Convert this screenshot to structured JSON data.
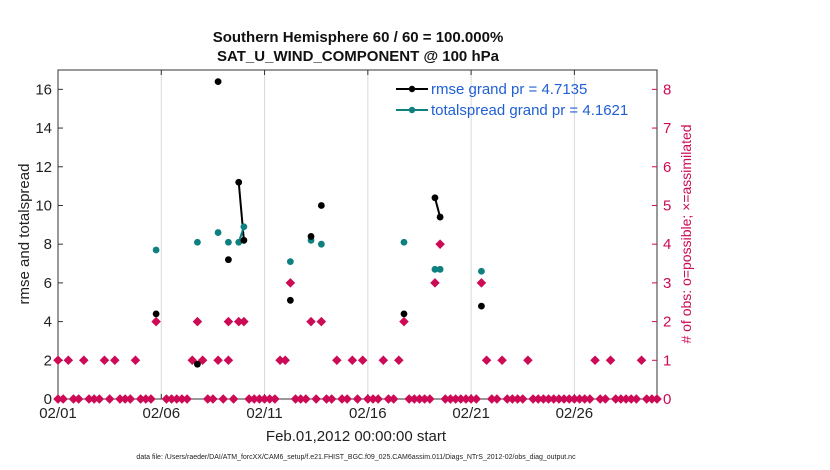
{
  "chart_data": {
    "type": "scatter",
    "title_line1": "Southern Hemisphere 60 / 60 = 100.000%",
    "title_line2": "SAT_U_WIND_COMPONENT @ 100 hPa",
    "xlabel": "Feb.01,2012 00:00:00 start",
    "ylabel_left": "rmse and totalspread",
    "ylabel_right": "# of obs: o=possible; ×=assimilated",
    "footnote": "data file: /Users/raeder/DAI/ATM_forcXX/CAM6_setup/f.e21.FHIST_BGC.f09_025.CAM6assim.011/Diags_NTrS_2012-02/obs_diag_output.nc",
    "xlim": [
      1,
      30
    ],
    "ylim_left": [
      0,
      17
    ],
    "ylim_right": [
      0,
      8.5
    ],
    "x_ticks": [
      {
        "value": 1,
        "label": "02/01"
      },
      {
        "value": 6,
        "label": "02/06"
      },
      {
        "value": 11,
        "label": "02/11"
      },
      {
        "value": 16,
        "label": "02/16"
      },
      {
        "value": 21,
        "label": "02/21"
      },
      {
        "value": 26,
        "label": "02/26"
      }
    ],
    "y_ticks_left": [
      {
        "value": 0,
        "label": "0"
      },
      {
        "value": 2,
        "label": "2"
      },
      {
        "value": 4,
        "label": "4"
      },
      {
        "value": 6,
        "label": "6"
      },
      {
        "value": 8,
        "label": "8"
      },
      {
        "value": 10,
        "label": "10"
      },
      {
        "value": 12,
        "label": "12"
      },
      {
        "value": 14,
        "label": "14"
      },
      {
        "value": 16,
        "label": "16"
      }
    ],
    "y_ticks_right": [
      {
        "value": 0,
        "label": "0"
      },
      {
        "value": 1,
        "label": "1"
      },
      {
        "value": 2,
        "label": "2"
      },
      {
        "value": 3,
        "label": "3"
      },
      {
        "value": 4,
        "label": "4"
      },
      {
        "value": 5,
        "label": "5"
      },
      {
        "value": 6,
        "label": "6"
      },
      {
        "value": 7,
        "label": "7"
      },
      {
        "value": 8,
        "label": "8"
      }
    ],
    "series": [
      {
        "name": "rmse grand pr = 4.7135",
        "color": "#000000",
        "axis": "left",
        "points": [
          [
            5.75,
            4.4
          ],
          [
            7.75,
            1.8
          ],
          [
            8.75,
            16.4
          ],
          [
            9.25,
            7.2
          ],
          [
            9.75,
            11.2
          ],
          [
            10.0,
            8.2
          ],
          [
            12.25,
            5.1
          ],
          [
            13.25,
            8.4
          ],
          [
            13.75,
            10.0
          ],
          [
            17.75,
            4.4
          ],
          [
            19.25,
            10.4
          ],
          [
            19.5,
            9.4
          ],
          [
            21.5,
            4.8
          ]
        ],
        "segments": [
          [
            4,
            5
          ],
          [
            10,
            11
          ]
        ]
      },
      {
        "name": "totalspread grand pr = 4.1621",
        "color": "#0f8080",
        "axis": "left",
        "points": [
          [
            5.75,
            7.7
          ],
          [
            7.75,
            8.1
          ],
          [
            8.75,
            8.6
          ],
          [
            9.25,
            8.1
          ],
          [
            9.75,
            8.1
          ],
          [
            10.0,
            8.9
          ],
          [
            12.25,
            7.1
          ],
          [
            13.25,
            8.2
          ],
          [
            13.75,
            8.0
          ],
          [
            17.75,
            8.1
          ],
          [
            19.25,
            6.7
          ],
          [
            19.5,
            6.7
          ],
          [
            21.5,
            6.6
          ]
        ],
        "segments": [
          [
            4,
            5
          ]
        ]
      },
      {
        "name": "obs possible / assimilated",
        "color": "#cc0a55",
        "axis": "right",
        "points": [
          [
            1.0,
            1
          ],
          [
            1.5,
            1
          ],
          [
            2.25,
            1
          ],
          [
            3.25,
            1
          ],
          [
            3.75,
            1
          ],
          [
            4.75,
            1
          ],
          [
            5.75,
            2
          ],
          [
            7.5,
            1
          ],
          [
            7.75,
            2
          ],
          [
            8.0,
            1
          ],
          [
            8.75,
            1
          ],
          [
            9.25,
            1
          ],
          [
            9.25,
            2
          ],
          [
            9.75,
            2
          ],
          [
            10.0,
            2
          ],
          [
            11.75,
            1
          ],
          [
            12.0,
            1
          ],
          [
            12.25,
            3
          ],
          [
            13.25,
            2
          ],
          [
            13.75,
            2
          ],
          [
            14.5,
            1
          ],
          [
            15.25,
            1
          ],
          [
            15.75,
            1
          ],
          [
            16.75,
            1
          ],
          [
            17.5,
            1
          ],
          [
            17.75,
            2
          ],
          [
            19.25,
            3
          ],
          [
            19.5,
            4
          ],
          [
            21.5,
            3
          ],
          [
            21.75,
            1
          ],
          [
            22.5,
            1
          ],
          [
            23.75,
            1
          ],
          [
            27.0,
            1
          ],
          [
            27.75,
            1
          ],
          [
            29.25,
            1
          ],
          [
            1.0,
            0
          ],
          [
            1.25,
            0
          ],
          [
            1.75,
            0
          ],
          [
            2.0,
            0
          ],
          [
            2.5,
            0
          ],
          [
            2.75,
            0
          ],
          [
            3.0,
            0
          ],
          [
            3.5,
            0
          ],
          [
            4.0,
            0
          ],
          [
            4.25,
            0
          ],
          [
            4.5,
            0
          ],
          [
            5.0,
            0
          ],
          [
            5.25,
            0
          ],
          [
            5.5,
            0
          ],
          [
            6.25,
            0
          ],
          [
            6.5,
            0
          ],
          [
            6.75,
            0
          ],
          [
            7.0,
            0
          ],
          [
            7.25,
            0
          ],
          [
            8.25,
            0
          ],
          [
            8.5,
            0
          ],
          [
            9.0,
            0
          ],
          [
            9.5,
            0
          ],
          [
            10.25,
            0
          ],
          [
            10.5,
            0
          ],
          [
            10.75,
            0
          ],
          [
            11.0,
            0
          ],
          [
            11.25,
            0
          ],
          [
            11.5,
            0
          ],
          [
            12.5,
            0
          ],
          [
            12.75,
            0
          ],
          [
            13.0,
            0
          ],
          [
            13.5,
            0
          ],
          [
            14.0,
            0
          ],
          [
            14.25,
            0
          ],
          [
            14.75,
            0
          ],
          [
            15.0,
            0
          ],
          [
            15.5,
            0
          ],
          [
            16.0,
            0
          ],
          [
            16.25,
            0
          ],
          [
            16.5,
            0
          ],
          [
            17.0,
            0
          ],
          [
            17.25,
            0
          ],
          [
            18.0,
            0
          ],
          [
            18.25,
            0
          ],
          [
            18.5,
            0
          ],
          [
            18.75,
            0
          ],
          [
            19.0,
            0
          ],
          [
            19.75,
            0
          ],
          [
            20.0,
            0
          ],
          [
            20.25,
            0
          ],
          [
            20.5,
            0
          ],
          [
            20.75,
            0
          ],
          [
            21.0,
            0
          ],
          [
            21.25,
            0
          ],
          [
            22.0,
            0
          ],
          [
            22.25,
            0
          ],
          [
            22.75,
            0
          ],
          [
            23.0,
            0
          ],
          [
            23.25,
            0
          ],
          [
            23.5,
            0
          ],
          [
            24.0,
            0
          ],
          [
            24.25,
            0
          ],
          [
            24.5,
            0
          ],
          [
            24.75,
            0
          ],
          [
            25.0,
            0
          ],
          [
            25.25,
            0
          ],
          [
            25.5,
            0
          ],
          [
            25.75,
            0
          ],
          [
            26.0,
            0
          ],
          [
            26.25,
            0
          ],
          [
            26.5,
            0
          ],
          [
            26.75,
            0
          ],
          [
            27.25,
            0
          ],
          [
            27.5,
            0
          ],
          [
            28.0,
            0
          ],
          [
            28.25,
            0
          ],
          [
            28.5,
            0
          ],
          [
            28.75,
            0
          ],
          [
            29.0,
            0
          ],
          [
            29.5,
            0
          ],
          [
            29.75,
            0
          ],
          [
            30.0,
            0
          ]
        ]
      }
    ]
  }
}
